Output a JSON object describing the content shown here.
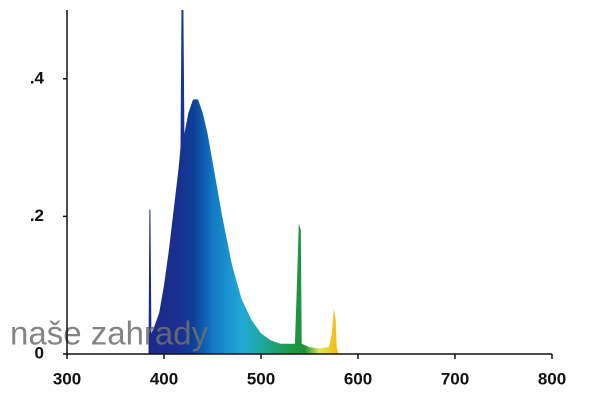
{
  "chart_data": {
    "type": "area",
    "x": [
      384,
      385,
      386,
      387,
      390,
      395,
      400,
      405,
      410,
      415,
      417,
      418,
      420,
      421,
      425,
      430,
      435,
      440,
      445,
      450,
      460,
      470,
      480,
      490,
      500,
      510,
      520,
      535,
      537,
      539,
      541,
      542,
      550,
      560,
      570,
      573,
      575,
      577,
      578,
      580
    ],
    "y": [
      0,
      0.21,
      0.21,
      0.03,
      0.04,
      0.06,
      0.1,
      0.15,
      0.21,
      0.27,
      0.3,
      0.5,
      0.5,
      0.32,
      0.35,
      0.37,
      0.37,
      0.35,
      0.32,
      0.28,
      0.2,
      0.13,
      0.08,
      0.05,
      0.03,
      0.02,
      0.015,
      0.015,
      0.1,
      0.19,
      0.18,
      0.015,
      0.01,
      0.008,
      0.01,
      0.03,
      0.065,
      0.05,
      0.01,
      0
    ],
    "xlim": [
      300,
      800
    ],
    "xticks": [
      300,
      400,
      500,
      600,
      700,
      800
    ],
    "ylim": [
      0,
      0.5
    ],
    "yticks": [
      0,
      {
        "value": 0.2,
        "label": ".2"
      },
      {
        "value": 0.4,
        "label": ".4"
      }
    ],
    "color_stops": [
      {
        "x": 385,
        "color": "#1b2a8a"
      },
      {
        "x": 415,
        "color": "#1a2f8f"
      },
      {
        "x": 430,
        "color": "#0d3f96"
      },
      {
        "x": 450,
        "color": "#1178c4"
      },
      {
        "x": 480,
        "color": "#21a9d8"
      },
      {
        "x": 500,
        "color": "#1fa8a0"
      },
      {
        "x": 530,
        "color": "#1e9a4a"
      },
      {
        "x": 545,
        "color": "#1f8f3a"
      },
      {
        "x": 560,
        "color": "#d9e85a"
      },
      {
        "x": 575,
        "color": "#f2c21c"
      }
    ],
    "grid": false,
    "watermark": "naše zahrady"
  }
}
